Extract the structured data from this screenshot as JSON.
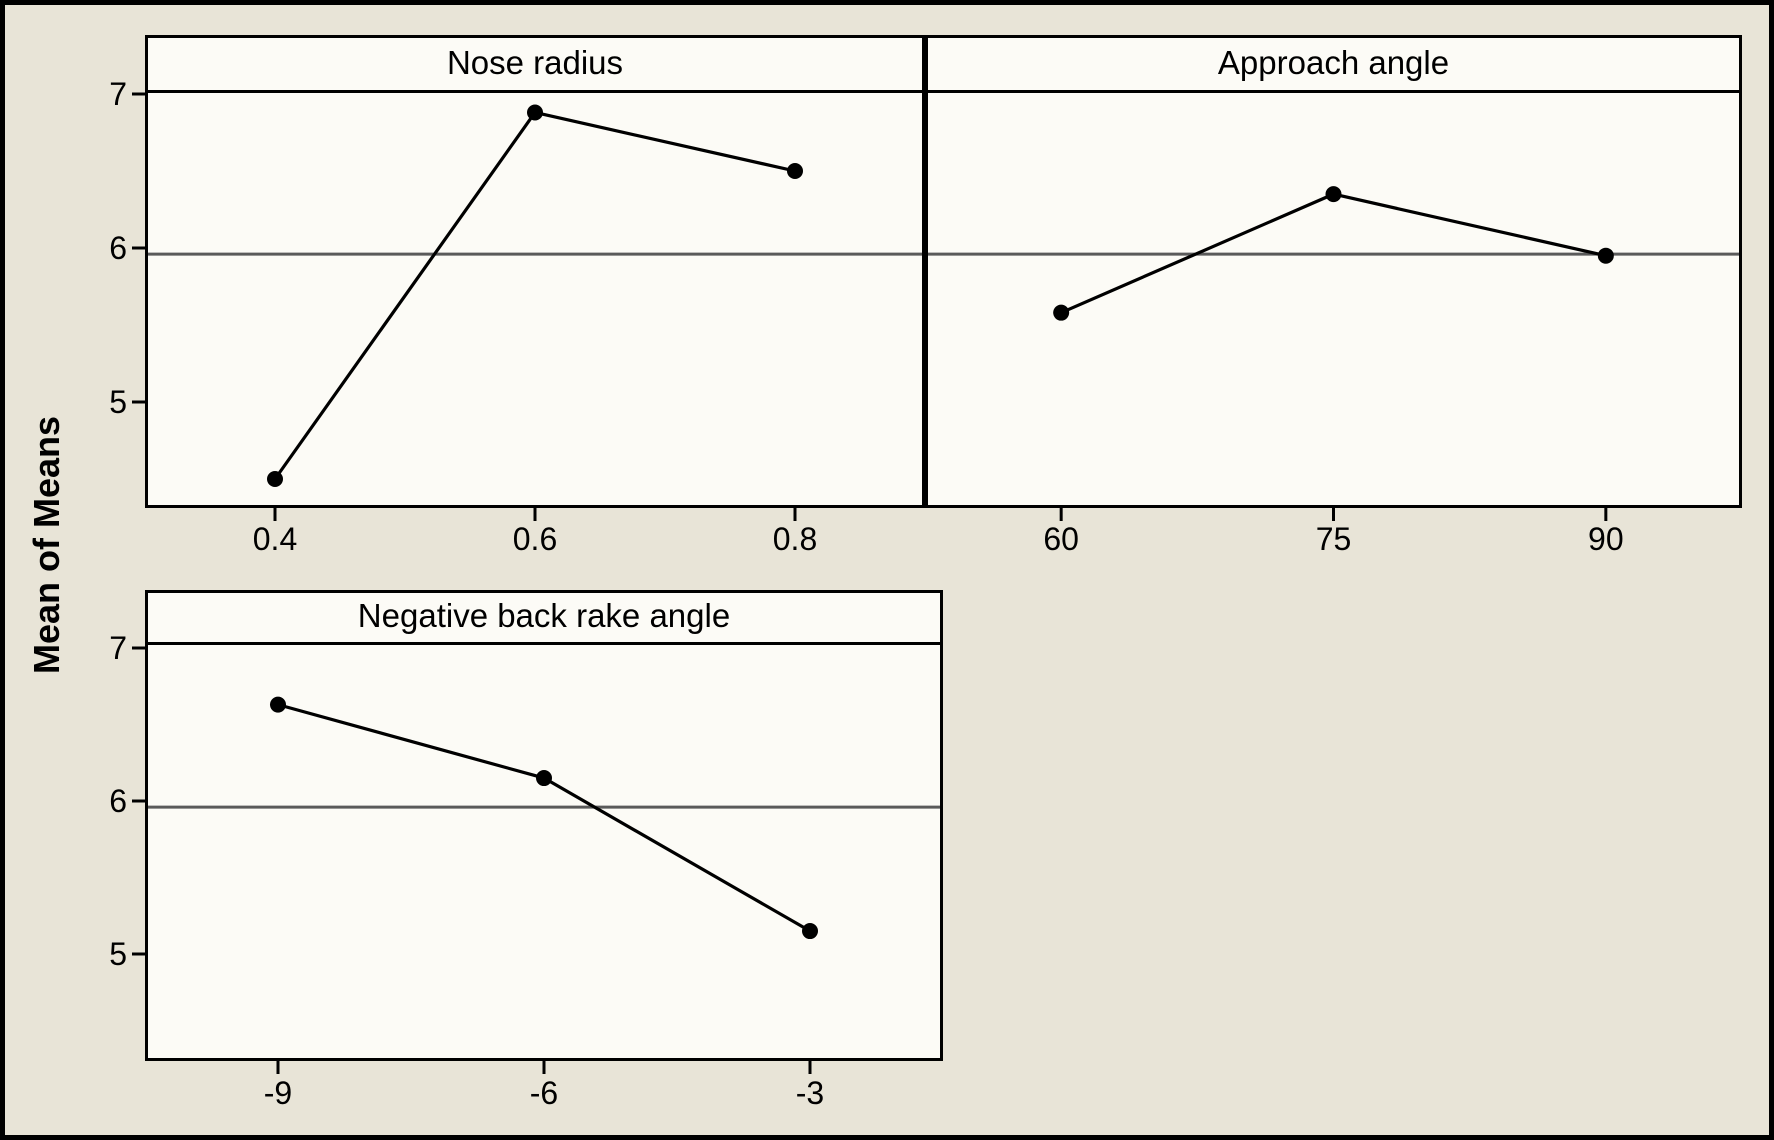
{
  "figure": {
    "kind": "paneled line plot",
    "ylabel": "Mean of Means"
  },
  "colors": {
    "background": "#e8e4d7",
    "panel_fill": "#fcfbf6",
    "line": "#000000",
    "reference_line": "#5a5a5a",
    "border": "#000000"
  },
  "y_axis": {
    "label": "Mean of Means",
    "ticks": [
      "7",
      "6",
      "5"
    ]
  },
  "reference_line_value": 5.96,
  "chart_data": [
    {
      "type": "line",
      "title": "Nose radius",
      "categories": [
        "0.4",
        "0.6",
        "0.8"
      ],
      "values": [
        4.5,
        6.88,
        6.5
      ],
      "xlabel": "",
      "ylabel": "Mean of Means",
      "yticks": [
        7,
        6,
        5
      ],
      "ylim": [
        4.3,
        7.05
      ],
      "grid": false,
      "legend": false,
      "marker": "filled-circle",
      "reference_line": 5.96
    },
    {
      "type": "line",
      "title": "Approach angle",
      "categories": [
        "60",
        "75",
        "90"
      ],
      "values": [
        5.58,
        6.35,
        5.95
      ],
      "xlabel": "",
      "ylabel": "Mean of Means",
      "yticks": [
        7,
        6,
        5
      ],
      "ylim": [
        4.3,
        7.05
      ],
      "grid": false,
      "legend": false,
      "marker": "filled-circle",
      "reference_line": 5.96
    },
    {
      "type": "line",
      "title": "Negative back rake angle",
      "categories": [
        "-9",
        "-6",
        "-3"
      ],
      "values": [
        6.63,
        6.15,
        5.15
      ],
      "xlabel": "",
      "ylabel": "Mean of Means",
      "yticks": [
        7,
        6,
        5
      ],
      "ylim": [
        4.3,
        7.05
      ],
      "grid": false,
      "legend": false,
      "marker": "filled-circle",
      "reference_line": 5.96
    }
  ]
}
